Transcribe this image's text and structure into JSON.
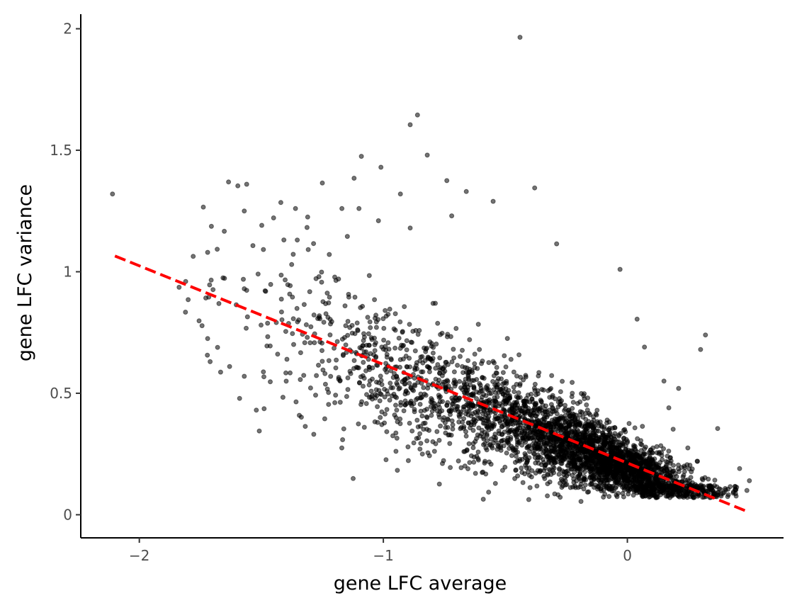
{
  "chart_data": {
    "type": "scatter",
    "title": "",
    "xlabel": "gene LFC average",
    "ylabel": "gene LFC variance",
    "xlim": [
      -2.24,
      0.64
    ],
    "ylim": [
      -0.095,
      2.06
    ],
    "x_ticks": [
      -2,
      -1,
      0
    ],
    "x_tick_labels": [
      "−2",
      "−1",
      "0"
    ],
    "y_ticks": [
      0,
      0.5,
      1,
      1.5,
      2
    ],
    "y_tick_labels": [
      "0",
      "0.5",
      "1",
      "1.5",
      "2"
    ],
    "grid": false,
    "legend": "none",
    "point_color": "#000000",
    "point_alpha": 0.55,
    "fit_line": {
      "style": "dashed",
      "color": "#ff0000",
      "x": [
        -2.1,
        0.5
      ],
      "y": [
        1.065,
        0.01
      ]
    },
    "cloud": {
      "approx_n_points": 8000,
      "note_trend": "variance decreases as average increases",
      "densest_region": {
        "x": [
          -0.4,
          0.3
        ],
        "y": [
          0.1,
          0.45
        ]
      }
    },
    "notable_points": [
      [
        -0.44,
        1.965
      ],
      [
        -0.86,
        1.645
      ],
      [
        -0.89,
        1.605
      ],
      [
        -2.11,
        1.32
      ],
      [
        -0.82,
        1.48
      ],
      [
        -1.01,
        1.43
      ],
      [
        -1.09,
        1.475
      ],
      [
        -1.12,
        1.385
      ],
      [
        -0.74,
        1.375
      ],
      [
        -1.56,
        1.36
      ],
      [
        -1.25,
        1.365
      ],
      [
        -0.38,
        1.345
      ],
      [
        -0.66,
        1.33
      ],
      [
        -0.93,
        1.32
      ],
      [
        -0.55,
        1.29
      ],
      [
        -1.42,
        1.285
      ],
      [
        -1.57,
        1.25
      ],
      [
        -1.36,
        1.26
      ],
      [
        -1.17,
        1.26
      ],
      [
        -1.1,
        1.26
      ],
      [
        -1.31,
        1.225
      ],
      [
        -1.02,
        1.21
      ],
      [
        -0.72,
        1.23
      ],
      [
        -0.89,
        1.18
      ],
      [
        -0.29,
        1.115
      ],
      [
        -0.03,
        1.01
      ],
      [
        -1.72,
        1.08
      ],
      [
        -1.81,
        0.96
      ],
      [
        -1.8,
        0.885
      ],
      [
        -1.72,
        0.725
      ],
      [
        -1.71,
        0.63
      ],
      [
        -1.63,
        0.61
      ],
      [
        -1.57,
        0.57
      ],
      [
        -1.24,
        0.395
      ],
      [
        -0.84,
        0.25
      ],
      [
        -0.67,
        0.26
      ],
      [
        -0.61,
        0.225
      ],
      [
        -0.45,
        0.16
      ],
      [
        -0.19,
        0.055
      ],
      [
        0.32,
        0.74
      ],
      [
        0.3,
        0.68
      ],
      [
        0.07,
        0.69
      ],
      [
        0.04,
        0.805
      ],
      [
        0.21,
        0.52
      ],
      [
        0.15,
        0.55
      ],
      [
        0.17,
        0.44
      ],
      [
        0.37,
        0.355
      ],
      [
        0.46,
        0.19
      ],
      [
        0.5,
        0.14
      ],
      [
        0.49,
        0.1
      ]
    ]
  }
}
